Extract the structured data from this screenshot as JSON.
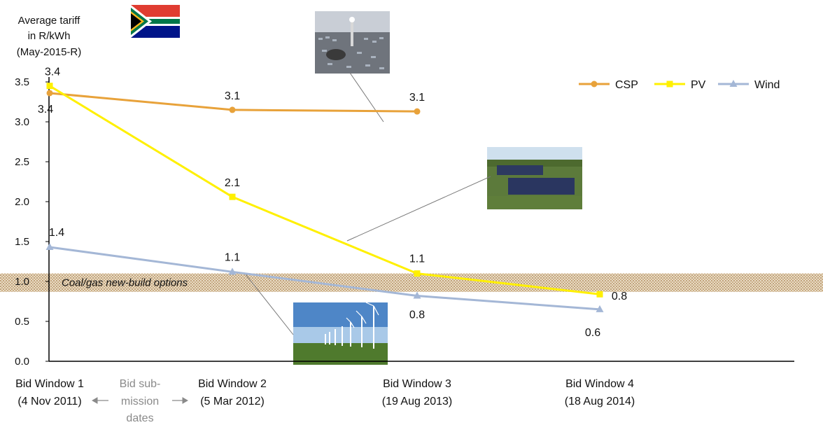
{
  "chart_data": {
    "type": "line",
    "ylabel_lines": [
      "Average tariff",
      "in R/kWh",
      "(May-2015-R)"
    ],
    "ylim": [
      0,
      3.5
    ],
    "yticks": [
      "0.0",
      "0.5",
      "1.0",
      "1.5",
      "2.0",
      "2.5",
      "3.0",
      "3.5"
    ],
    "grid": false,
    "legend_position": "top-right",
    "categories": [
      {
        "line1": "Bid Window 1",
        "line2": "(4 Nov 2011)"
      },
      {
        "line1": "Bid Window 2",
        "line2": "(5 Mar 2012)"
      },
      {
        "line1": "Bid Window 3",
        "line2": "(19 Aug 2013)"
      },
      {
        "line1": "Bid Window 4",
        "line2": "(18 Aug 2014)"
      }
    ],
    "submission_note_lines": [
      "Bid sub-",
      "mission",
      "dates"
    ],
    "band": {
      "label": "Coal/gas new-build options",
      "range": [
        0.87,
        1.1
      ]
    },
    "series": [
      {
        "name": "CSP",
        "color": "#E8A23A",
        "marker": "circle",
        "values": [
          3.36,
          3.15,
          3.13,
          null
        ],
        "labels": [
          "3.4",
          "3.1",
          "3.1",
          null
        ]
      },
      {
        "name": "PV",
        "color": "#FFF000",
        "marker": "square",
        "values": [
          3.45,
          2.06,
          1.1,
          0.84
        ],
        "labels": [
          "3.4",
          "2.1",
          "1.1",
          "0.8"
        ]
      },
      {
        "name": "Wind",
        "color": "#A4B7D6",
        "marker": "triangle",
        "values": [
          1.43,
          1.12,
          0.82,
          0.65
        ],
        "labels": [
          "1.4",
          "1.1",
          "0.8",
          "0.6"
        ]
      }
    ]
  },
  "images": [
    {
      "name": "south-africa-flag",
      "subject": "South Africa flag"
    },
    {
      "name": "csp-plant-photo",
      "subject": "concentrated solar power tower and heliostat field"
    },
    {
      "name": "pv-farm-photo",
      "subject": "solar photovoltaic farm"
    },
    {
      "name": "wind-farm-photo",
      "subject": "row of wind turbines in a field"
    }
  ]
}
